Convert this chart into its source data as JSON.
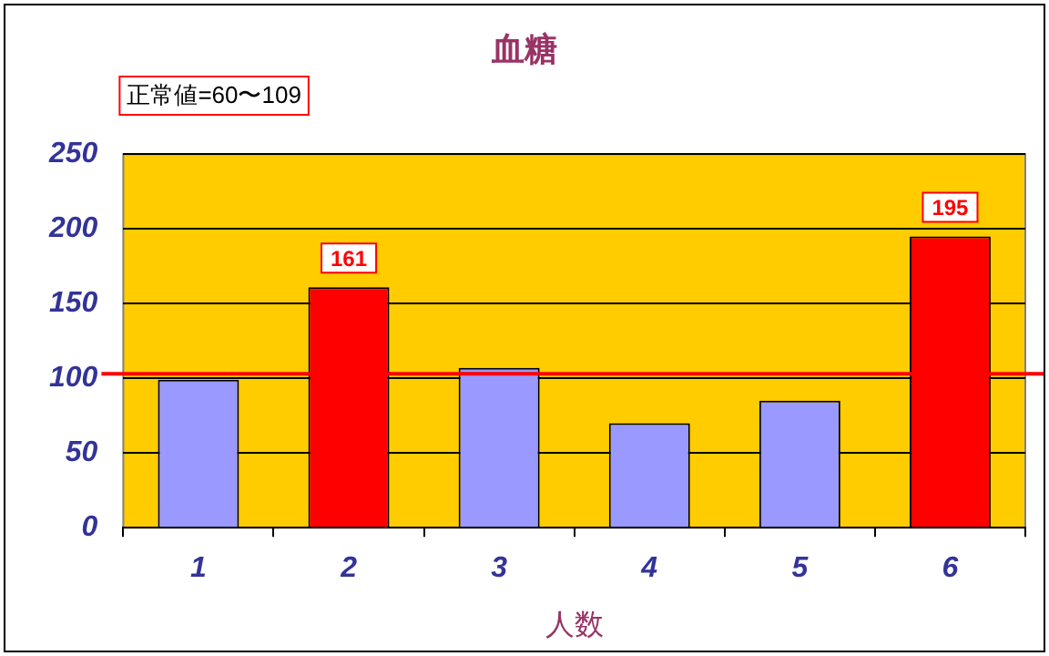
{
  "chart_data": {
    "type": "bar",
    "title": "血糖",
    "xlabel": "人数",
    "categories": [
      "1",
      "2",
      "3",
      "4",
      "5",
      "6"
    ],
    "values": [
      99,
      161,
      107,
      70,
      85,
      195
    ],
    "colors": [
      "#9999ff",
      "#ff0000",
      "#9999ff",
      "#9999ff",
      "#9999ff",
      "#ff0000"
    ],
    "value_labels": [
      null,
      "161",
      null,
      null,
      null,
      "195"
    ],
    "ylim": [
      0,
      250
    ],
    "yticks": [
      0,
      50,
      100,
      150,
      200,
      250
    ],
    "grid": "y",
    "legend": false,
    "ref_lines": [
      {
        "axis": "y",
        "value": 103,
        "color": "#ff0000"
      }
    ],
    "annotations": [
      "正常値=60〜109"
    ]
  }
}
